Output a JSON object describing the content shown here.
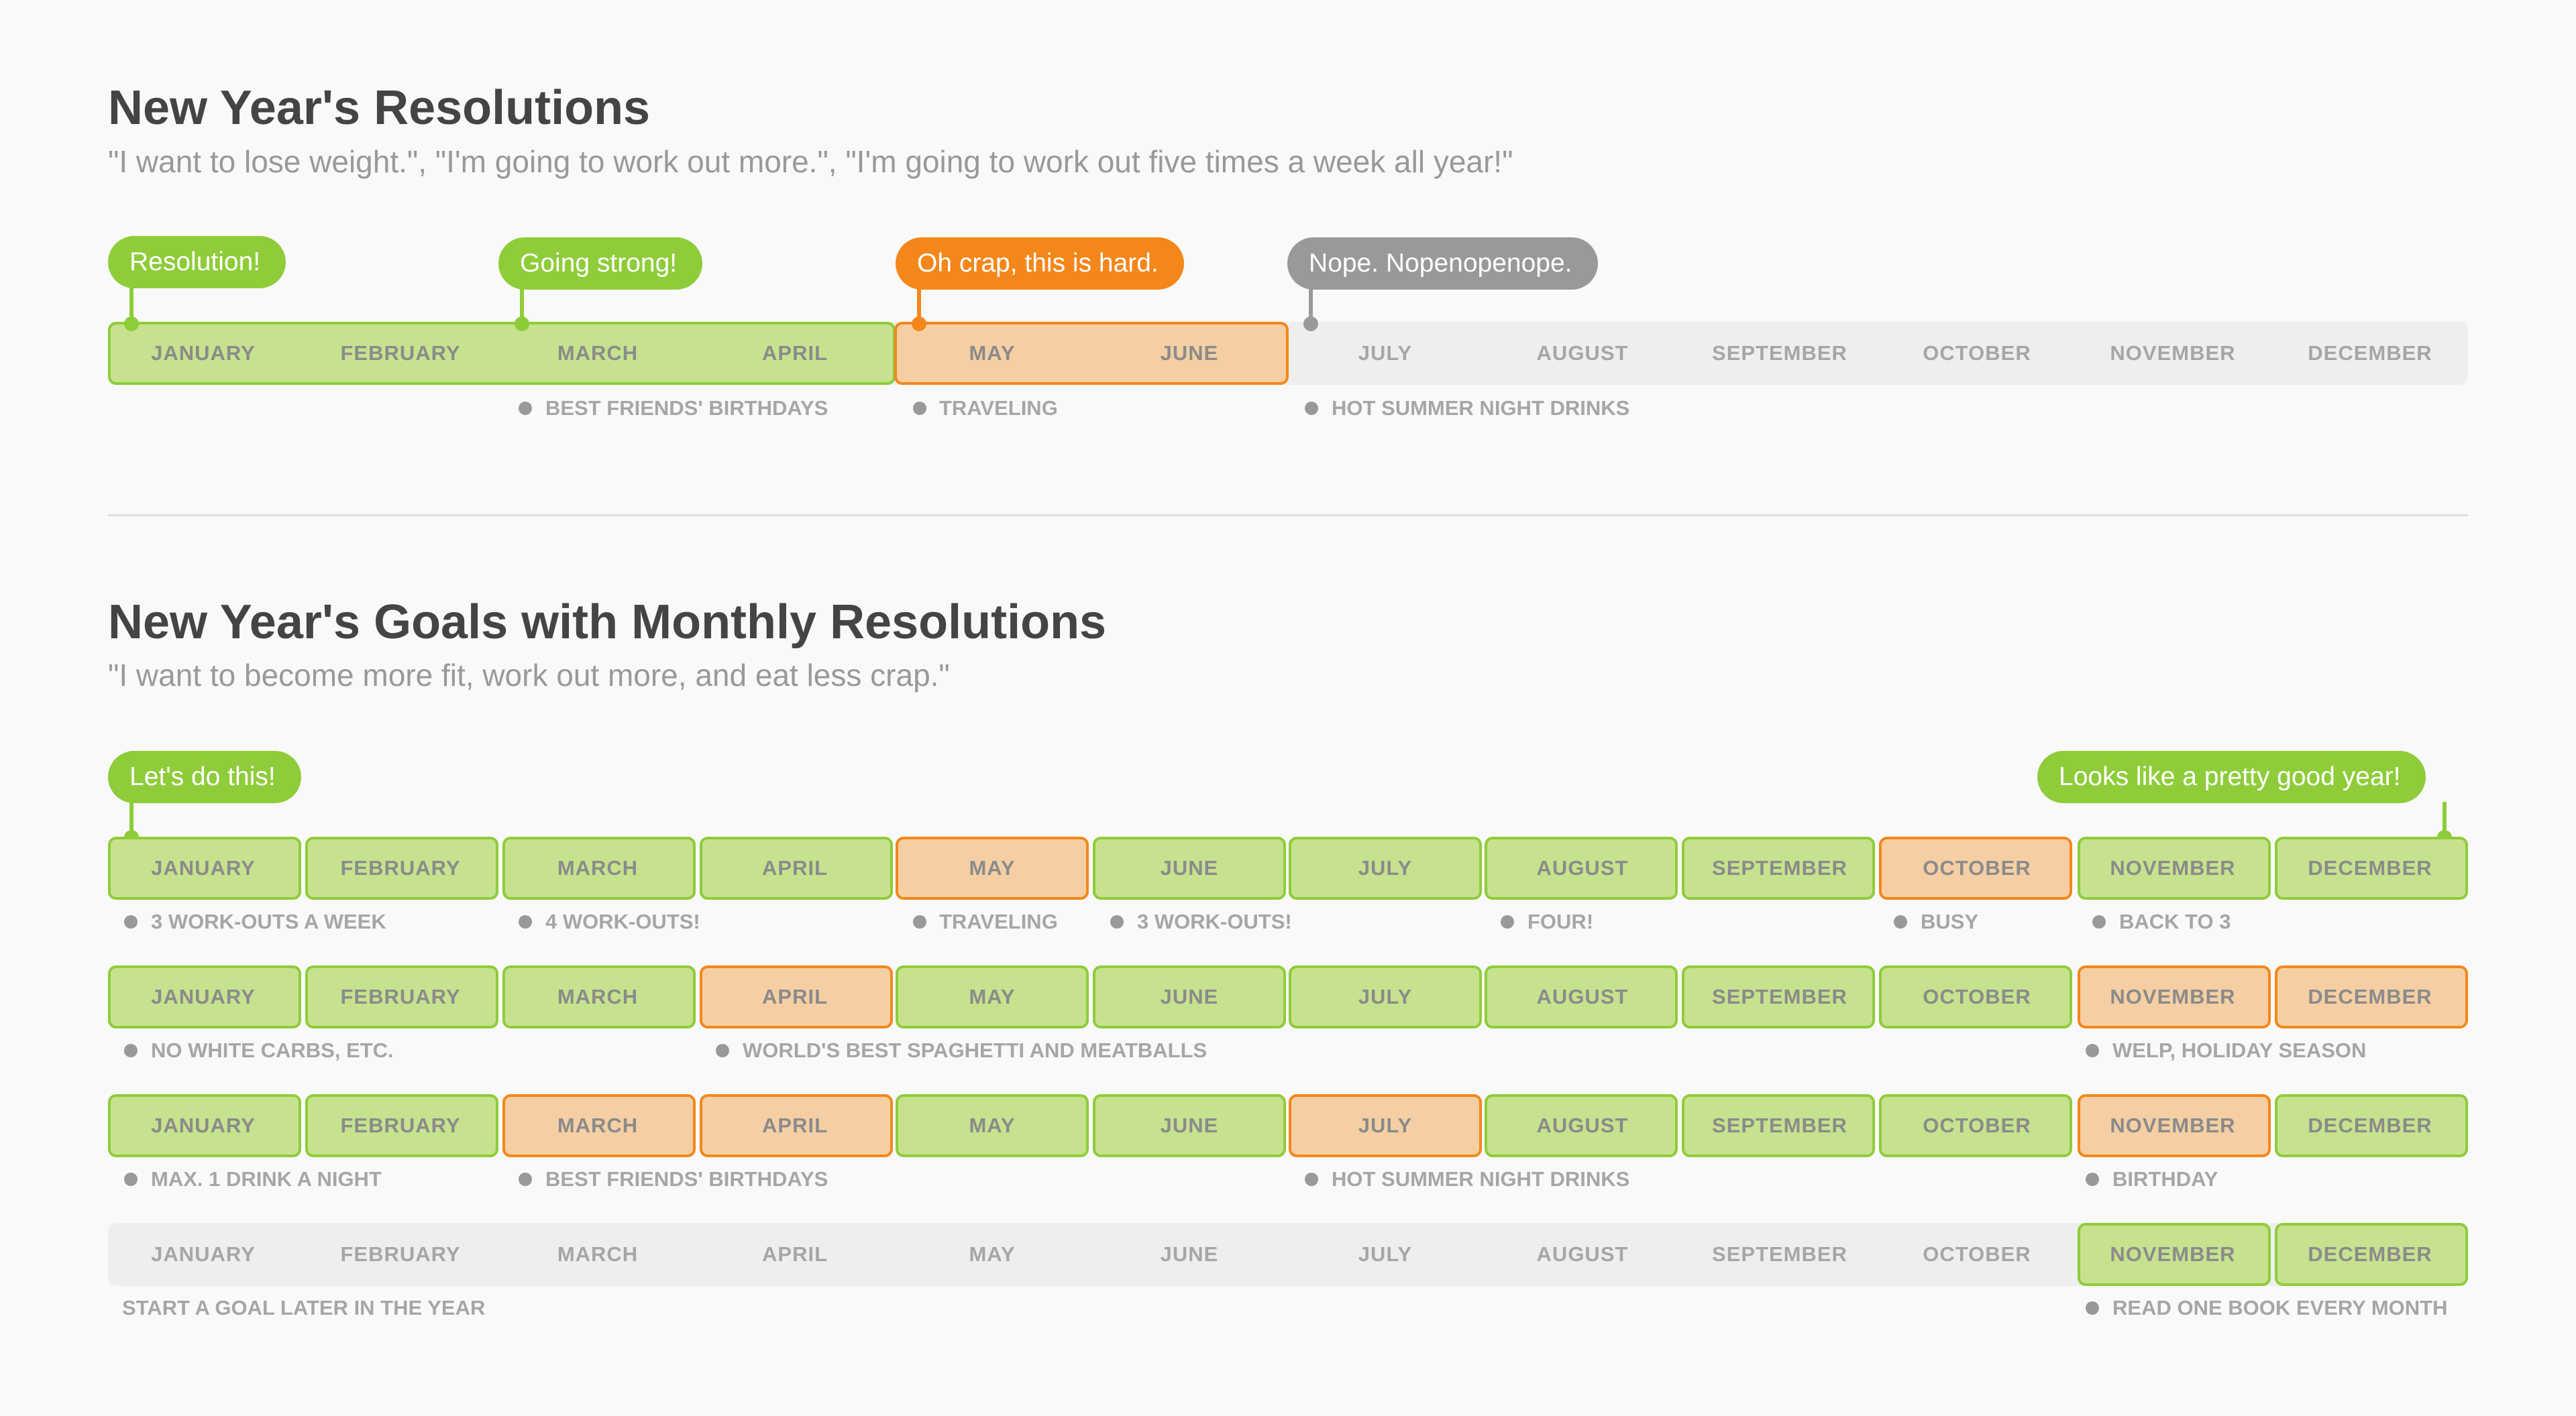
{
  "section1": {
    "title": "New Year's Resolutions",
    "subtitle": "\"I want to lose weight.\", \"I'm going to work out more.\", \"I'm going to work out five times a week all year!\"",
    "bubbles": [
      "Resolution!",
      "Going strong!",
      "Oh crap, this is hard.",
      "Nope. Nopenopenope."
    ],
    "months": [
      "JANUARY",
      "FEBRUARY",
      "MARCH",
      "APRIL",
      "MAY",
      "JUNE",
      "JULY",
      "AUGUST",
      "SEPTEMBER",
      "OCTOBER",
      "NOVEMBER",
      "DECEMBER"
    ],
    "notes": [
      "BEST FRIENDS' BIRTHDAYS",
      "TRAVELING",
      "HOT SUMMER NIGHT DRINKS"
    ]
  },
  "section2": {
    "title": "New Year's Goals with Monthly Resolutions",
    "subtitle": "\"I want to become more fit, work out more, and eat less crap.\"",
    "bubbles": [
      "Let's do this!",
      "Looks like a pretty good year!"
    ],
    "rows": [
      {
        "status": [
          "green",
          "green",
          "green",
          "green",
          "orange",
          "green",
          "green",
          "green",
          "green",
          "orange",
          "green",
          "green"
        ],
        "notes": [
          "3 WORK-OUTS A WEEK",
          "4 WORK-OUTS!",
          "TRAVELING",
          "3 WORK-OUTS!",
          "FOUR!",
          "BUSY",
          "BACK TO 3"
        ]
      },
      {
        "status": [
          "green",
          "green",
          "green",
          "orange",
          "green",
          "green",
          "green",
          "green",
          "green",
          "green",
          "orange",
          "orange"
        ],
        "notes": [
          "NO WHITE CARBS, ETC.",
          "WORLD'S BEST SPAGHETTI AND MEATBALLS",
          "WELP, HOLIDAY SEASON"
        ]
      },
      {
        "status": [
          "green",
          "green",
          "orange",
          "orange",
          "green",
          "green",
          "orange",
          "green",
          "green",
          "green",
          "orange",
          "green"
        ],
        "notes": [
          "MAX. 1 DRINK A NIGHT",
          "BEST FRIENDS' BIRTHDAYS",
          "HOT SUMMER NIGHT DRINKS",
          "BIRTHDAY"
        ]
      },
      {
        "status": [
          "none",
          "none",
          "none",
          "none",
          "none",
          "none",
          "none",
          "none",
          "none",
          "none",
          "green",
          "green"
        ],
        "notes": [
          "START A GOAL LATER IN THE YEAR",
          "READ ONE BOOK EVERY MONTH"
        ]
      }
    ]
  },
  "colors": {
    "green": "#8fcc3a",
    "green_fill": "#c6e28e",
    "orange": "#f4871a",
    "orange_fill": "#f5cfa3",
    "gray": "#999999",
    "track": "#eeeeee"
  }
}
